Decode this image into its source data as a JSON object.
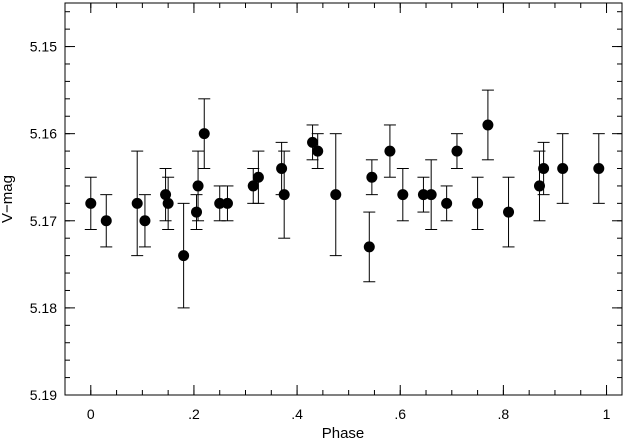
{
  "chart_data": {
    "type": "scatter",
    "title": "",
    "xlabel": "Phase",
    "ylabel": "V−mag",
    "xlim": [
      -0.05,
      1.03
    ],
    "ylim": [
      5.145,
      5.19
    ],
    "y_inverted": true,
    "grid": false,
    "x_ticks": [
      {
        "value": 0.0,
        "label": "0"
      },
      {
        "value": 0.2,
        "label": ".2"
      },
      {
        "value": 0.4,
        "label": ".4"
      },
      {
        "value": 0.6,
        "label": ".6"
      },
      {
        "value": 0.8,
        "label": ".8"
      },
      {
        "value": 1.0,
        "label": "1"
      }
    ],
    "x_minor_step": 0.05,
    "y_ticks": [
      {
        "value": 5.15,
        "label": "5.15"
      },
      {
        "value": 5.16,
        "label": "5.16"
      },
      {
        "value": 5.17,
        "label": "5.17"
      },
      {
        "value": 5.18,
        "label": "5.18"
      },
      {
        "value": 5.19,
        "label": "5.19"
      }
    ],
    "y_minor_step": 0.002,
    "marker_color": "#000000",
    "points": [
      {
        "x": 0.0,
        "y": 5.168,
        "err": 0.003
      },
      {
        "x": 0.03,
        "y": 5.17,
        "err": 0.003
      },
      {
        "x": 0.09,
        "y": 5.168,
        "err": 0.006
      },
      {
        "x": 0.105,
        "y": 5.17,
        "err": 0.003
      },
      {
        "x": 0.145,
        "y": 5.167,
        "err": 0.003
      },
      {
        "x": 0.15,
        "y": 5.168,
        "err": 0.003
      },
      {
        "x": 0.18,
        "y": 5.174,
        "err": 0.006
      },
      {
        "x": 0.205,
        "y": 5.169,
        "err": 0.002
      },
      {
        "x": 0.208,
        "y": 5.166,
        "err": 0.004
      },
      {
        "x": 0.22,
        "y": 5.16,
        "err": 0.004
      },
      {
        "x": 0.25,
        "y": 5.168,
        "err": 0.002
      },
      {
        "x": 0.265,
        "y": 5.168,
        "err": 0.002
      },
      {
        "x": 0.315,
        "y": 5.166,
        "err": 0.002
      },
      {
        "x": 0.325,
        "y": 5.165,
        "err": 0.003
      },
      {
        "x": 0.37,
        "y": 5.164,
        "err": 0.003
      },
      {
        "x": 0.375,
        "y": 5.167,
        "err": 0.005
      },
      {
        "x": 0.43,
        "y": 5.161,
        "err": 0.002
      },
      {
        "x": 0.44,
        "y": 5.162,
        "err": 0.002
      },
      {
        "x": 0.475,
        "y": 5.167,
        "err": 0.007
      },
      {
        "x": 0.54,
        "y": 5.173,
        "err": 0.004
      },
      {
        "x": 0.545,
        "y": 5.165,
        "err": 0.002
      },
      {
        "x": 0.58,
        "y": 5.162,
        "err": 0.003
      },
      {
        "x": 0.605,
        "y": 5.167,
        "err": 0.003
      },
      {
        "x": 0.645,
        "y": 5.167,
        "err": 0.002
      },
      {
        "x": 0.66,
        "y": 5.167,
        "err": 0.004
      },
      {
        "x": 0.69,
        "y": 5.168,
        "err": 0.002
      },
      {
        "x": 0.71,
        "y": 5.162,
        "err": 0.002
      },
      {
        "x": 0.75,
        "y": 5.168,
        "err": 0.003
      },
      {
        "x": 0.77,
        "y": 5.159,
        "err": 0.004
      },
      {
        "x": 0.81,
        "y": 5.169,
        "err": 0.004
      },
      {
        "x": 0.87,
        "y": 5.166,
        "err": 0.004
      },
      {
        "x": 0.878,
        "y": 5.164,
        "err": 0.003
      },
      {
        "x": 0.915,
        "y": 5.164,
        "err": 0.004
      },
      {
        "x": 0.985,
        "y": 5.164,
        "err": 0.004
      }
    ]
  }
}
